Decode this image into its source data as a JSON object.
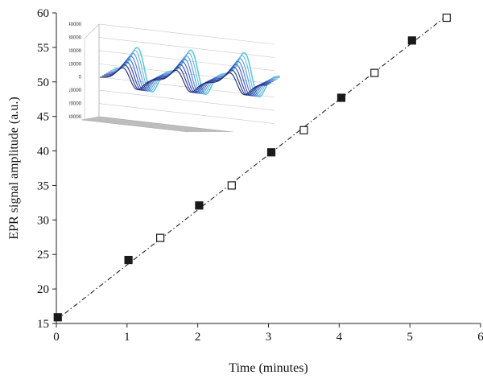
{
  "chart_data": {
    "type": "scatter",
    "xlabel": "Time (minutes)",
    "ylabel": "EPR signal amplitude (a.u.)",
    "xlim": [
      0,
      6
    ],
    "ylim": [
      15,
      60
    ],
    "x_ticks": [
      "0",
      "1",
      "2",
      "3",
      "4",
      "5",
      "6"
    ],
    "y_ticks": [
      "15",
      "20",
      "25",
      "30",
      "35",
      "40",
      "45",
      "50",
      "55",
      "60"
    ],
    "grid": false,
    "series": [
      {
        "marker": "filled-square",
        "color": "#1a1a1a",
        "x": [
          0.02,
          1.02,
          2.02,
          3.04,
          4.03,
          5.03
        ],
        "y": [
          15.9,
          24.2,
          32.1,
          39.8,
          47.7,
          56.0
        ]
      },
      {
        "marker": "open-square",
        "color": "#1a1a1a",
        "x": [
          1.47,
          2.48,
          3.5,
          4.5,
          5.52
        ],
        "y": [
          27.4,
          35.0,
          43.0,
          51.3,
          59.3
        ]
      }
    ],
    "trendline": {
      "style": "dash-dot",
      "x": [
        0,
        5.55
      ],
      "y": [
        15.5,
        59.8
      ]
    },
    "inset": {
      "type": "3d-line",
      "y_ticks": [
        "40000",
        "30000",
        "20000",
        "10000",
        "0",
        "-10000",
        "-20000",
        "-30000"
      ],
      "y_values": [
        40000,
        30000,
        20000,
        10000,
        0,
        -10000,
        -20000,
        -30000
      ],
      "series_colors": [
        "#1f2a6b",
        "#26348a",
        "#2e45a8",
        "#3a5cc4",
        "#4a79d2",
        "#5c98dc",
        "#6cb7e0",
        "#5fc9d9"
      ],
      "floor_color": "#bdbdbd"
    }
  }
}
